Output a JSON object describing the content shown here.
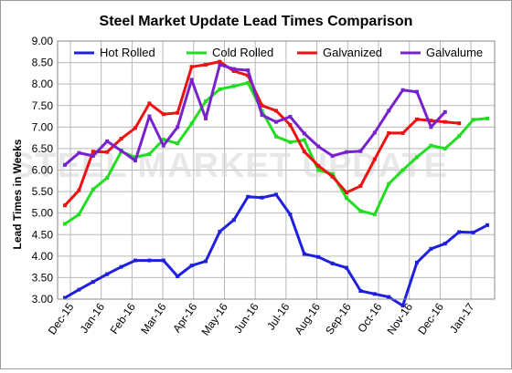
{
  "chart_data": {
    "type": "line",
    "title": "Steel Market Update Lead Times Comparison",
    "ylabel": "Lead Times in Weeks",
    "xlabel": "",
    "ylim": [
      3.0,
      9.0
    ],
    "ytick_labels": [
      "3.00",
      "3.50",
      "4.00",
      "4.50",
      "5.00",
      "5.50",
      "6.00",
      "6.50",
      "7.00",
      "7.50",
      "8.00",
      "8.50",
      "9.00"
    ],
    "x_tick_labels": [
      "Dec-15",
      "Jan-16",
      "Feb-16",
      "Mar-16",
      "Apr-16",
      "May-16",
      "Jun-16",
      "Jul-16",
      "Aug-16",
      "Sep-16",
      "Oct-16",
      "Nov-16",
      "Dec-16",
      "Jan-17"
    ],
    "grid": true,
    "legend_position": "top",
    "watermark": "STEEL MARKET UPDATE",
    "series": [
      {
        "name": "Hot Rolled",
        "color": "#1f1fe0",
        "values": [
          3.03,
          3.22,
          3.4,
          3.58,
          3.75,
          3.9,
          3.9,
          3.9,
          3.53,
          3.78,
          3.88,
          4.57,
          4.84,
          5.38,
          5.36,
          5.43,
          4.97,
          4.05,
          3.98,
          3.83,
          3.73,
          3.19,
          3.12,
          3.05,
          2.85,
          3.85,
          4.17,
          4.29,
          4.56,
          4.55,
          4.72
        ]
      },
      {
        "name": "Cold Rolled",
        "color": "#22dd22",
        "values": [
          4.75,
          4.97,
          5.55,
          5.82,
          6.43,
          6.3,
          6.37,
          6.71,
          6.62,
          7.08,
          7.6,
          7.88,
          7.95,
          8.03,
          7.37,
          6.78,
          6.65,
          6.7,
          6.0,
          5.91,
          5.35,
          5.05,
          4.97,
          5.68,
          6.0,
          6.3,
          6.57,
          6.5,
          6.79,
          7.17,
          7.2
        ]
      },
      {
        "name": "Galvanized",
        "color": "#ee1111",
        "values": [
          5.18,
          5.53,
          6.43,
          6.42,
          6.73,
          6.98,
          7.55,
          7.3,
          7.33,
          8.4,
          8.45,
          8.52,
          8.3,
          8.2,
          7.5,
          7.38,
          7.05,
          6.43,
          6.1,
          5.85,
          5.48,
          5.63,
          6.25,
          6.86,
          6.86,
          7.18,
          7.15,
          7.12,
          7.09
        ]
      },
      {
        "name": "Galvalume",
        "color": "#7722cc",
        "values": [
          6.12,
          6.4,
          6.33,
          6.67,
          6.45,
          6.22,
          7.25,
          6.57,
          7.0,
          8.1,
          7.2,
          8.45,
          8.35,
          8.32,
          7.28,
          7.12,
          7.24,
          6.85,
          6.55,
          6.33,
          6.42,
          6.44,
          6.87,
          7.38,
          7.86,
          7.82,
          7.0,
          7.35
        ]
      }
    ]
  }
}
